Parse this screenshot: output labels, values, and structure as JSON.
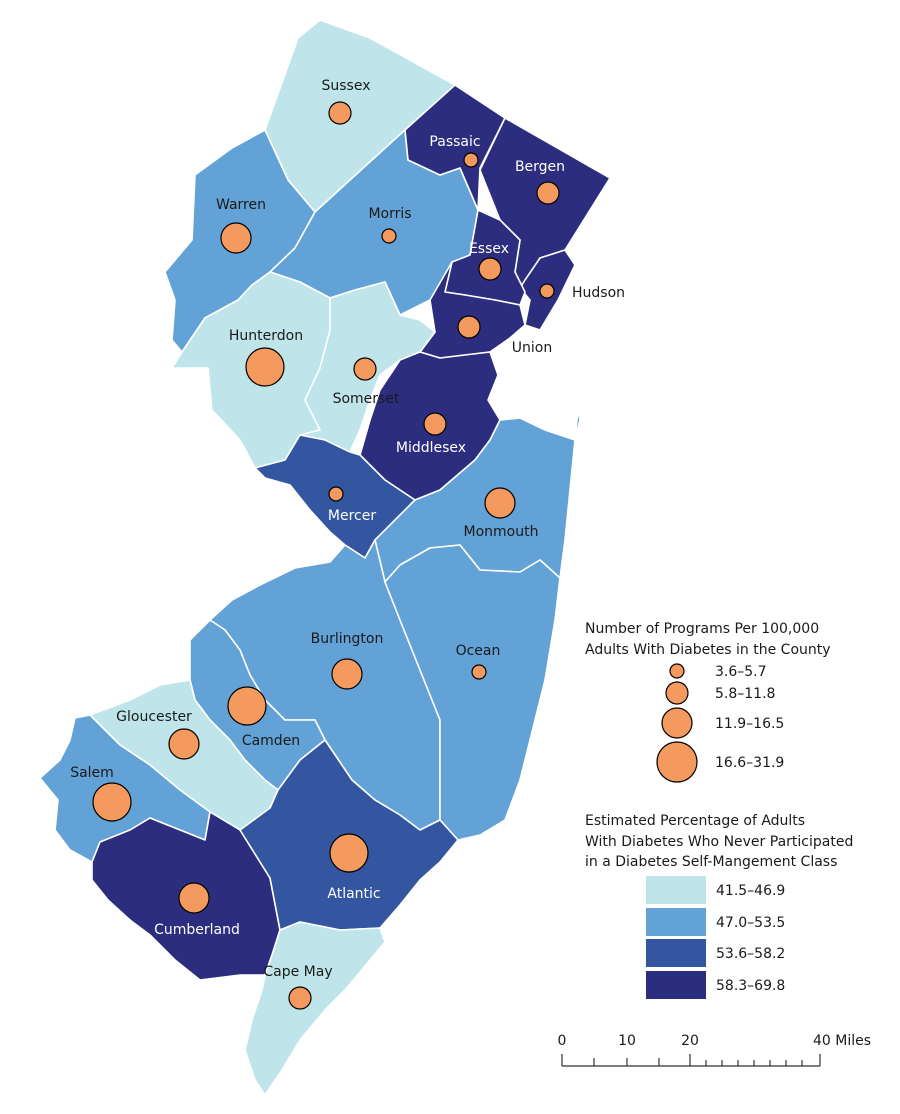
{
  "colors": {
    "class1": "#bfe5ea",
    "class2": "#62a2d6",
    "class3": "#34559f",
    "class4": "#2c2d7e",
    "bubble": "#f59a5e",
    "label_dark": "#1a1a1a",
    "label_light": "#ffffff"
  },
  "counties": [
    {
      "id": "sussex",
      "name": "Sussex",
      "class": 1,
      "size_class": 2
    },
    {
      "id": "passaic",
      "name": "Passaic",
      "class": 4,
      "size_class": 1
    },
    {
      "id": "bergen",
      "name": "Bergen",
      "class": 4,
      "size_class": 2
    },
    {
      "id": "warren",
      "name": "Warren",
      "class": 2,
      "size_class": 3
    },
    {
      "id": "morris",
      "name": "Morris",
      "class": 2,
      "size_class": 1
    },
    {
      "id": "essex",
      "name": "Essex",
      "class": 4,
      "size_class": 2
    },
    {
      "id": "hudson",
      "name": "Hudson",
      "class": 4,
      "size_class": 1
    },
    {
      "id": "union",
      "name": "Union",
      "class": 4,
      "size_class": 2
    },
    {
      "id": "hunterdon",
      "name": "Hunterdon",
      "class": 1,
      "size_class": 4
    },
    {
      "id": "somerset",
      "name": "Somerset",
      "class": 1,
      "size_class": 2
    },
    {
      "id": "middlesex",
      "name": "Middlesex",
      "class": 4,
      "size_class": 2
    },
    {
      "id": "mercer",
      "name": "Mercer",
      "class": 3,
      "size_class": 1
    },
    {
      "id": "monmouth",
      "name": "Monmouth",
      "class": 2,
      "size_class": 3
    },
    {
      "id": "burlington",
      "name": "Burlington",
      "class": 2,
      "size_class": 3
    },
    {
      "id": "ocean",
      "name": "Ocean",
      "class": 2,
      "size_class": 1
    },
    {
      "id": "gloucester",
      "name": "Gloucester",
      "class": 1,
      "size_class": 3
    },
    {
      "id": "camden",
      "name": "Camden",
      "class": 2,
      "size_class": 4
    },
    {
      "id": "salem",
      "name": "Salem",
      "class": 2,
      "size_class": 4
    },
    {
      "id": "atlantic",
      "name": "Atlantic",
      "class": 3,
      "size_class": 4
    },
    {
      "id": "cumberland",
      "name": "Cumberland",
      "class": 4,
      "size_class": 3
    },
    {
      "id": "cape-may",
      "name": "Cape May",
      "class": 1,
      "size_class": 2
    }
  ],
  "legend_programs": {
    "title_line1": "Number of Programs Per 100,000",
    "title_line2": "Adults With Diabetes in the County",
    "items": [
      "3.6–5.7",
      "5.8–11.8",
      "11.9–16.5",
      "16.6–31.9"
    ]
  },
  "legend_percent": {
    "title_line1": "Estimated Percentage of Adults",
    "title_line2": "With Diabetes Who Never Participated",
    "title_line3": "in a Diabetes Self-Mangement Class",
    "items": [
      "41.5–46.9",
      "47.0–53.5",
      "53.6–58.2",
      "58.3–69.8"
    ]
  },
  "scale_bar": {
    "labels": [
      "0",
      "10",
      "20",
      "40 Miles"
    ]
  }
}
